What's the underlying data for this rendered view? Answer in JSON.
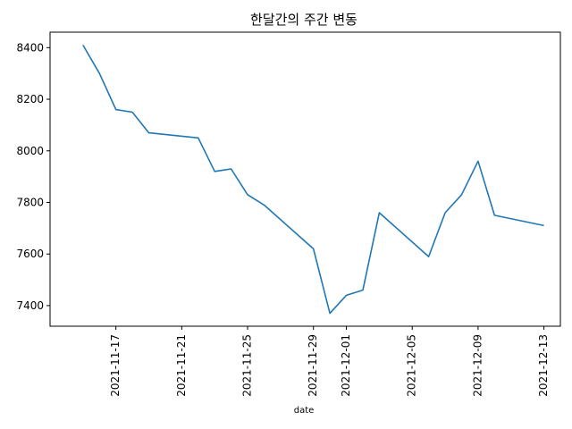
{
  "chart_data": {
    "type": "line",
    "title": "한달간의 주간 변동",
    "xlabel": "date",
    "ylabel": "",
    "x_tick_labels": [
      "2021-11-17",
      "2021-11-21",
      "2021-11-25",
      "2021-11-29",
      "2021-12-01",
      "2021-12-05",
      "2021-12-09",
      "2021-12-13"
    ],
    "y_ticks": [
      7400,
      7600,
      7800,
      8000,
      8200,
      8400
    ],
    "xlim": [
      "2021-11-13",
      "2021-12-14"
    ],
    "ylim": [
      7320,
      8460
    ],
    "series": [
      {
        "color": "#1f77b4",
        "x": [
          "2021-11-15",
          "2021-11-16",
          "2021-11-17",
          "2021-11-18",
          "2021-11-19",
          "2021-11-22",
          "2021-11-23",
          "2021-11-24",
          "2021-11-25",
          "2021-11-26",
          "2021-11-29",
          "2021-11-30",
          "2021-12-01",
          "2021-12-02",
          "2021-12-03",
          "2021-12-06",
          "2021-12-07",
          "2021-12-08",
          "2021-12-09",
          "2021-12-10",
          "2021-12-13"
        ],
        "y": [
          8410,
          8300,
          8160,
          8150,
          8070,
          8050,
          7920,
          7930,
          7830,
          7790,
          7620,
          7370,
          7440,
          7460,
          7760,
          7590,
          7760,
          7830,
          7960,
          7750,
          7710
        ]
      }
    ],
    "grid": false,
    "legend": "none"
  }
}
